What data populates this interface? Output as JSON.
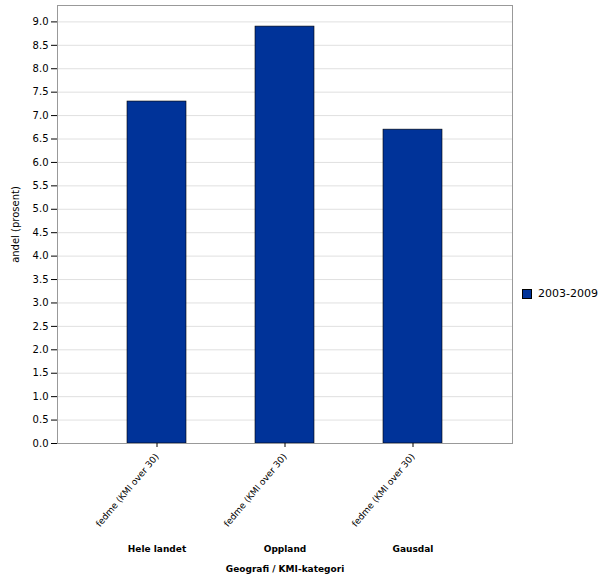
{
  "chart_data": {
    "type": "bar",
    "x_label": "Geografi / KMI-kategori",
    "y_label": "andel (prosent)",
    "categories": [
      "fedme (KMI over 30)",
      "fedme (KMI over 30)",
      "fedme (KMI over 30)"
    ],
    "groups": [
      "Hele landet",
      "Oppland",
      "Gausdal"
    ],
    "series": [
      {
        "name": "2003-2009",
        "color": "#003399",
        "values": [
          7.3,
          8.9,
          6.7
        ]
      }
    ],
    "ylim": [
      0,
      9.35
    ],
    "yticks": [
      {
        "value": 0,
        "label": "0.0"
      },
      0.5,
      {
        "value": 1,
        "label": "1.0"
      },
      1.5,
      {
        "value": 2,
        "label": "2.0"
      },
      2.5,
      {
        "value": 3,
        "label": "3.0"
      },
      3.5,
      {
        "value": 4,
        "label": "4.0"
      },
      4.5,
      {
        "value": 5,
        "label": "5.0"
      },
      5.5,
      {
        "value": 6,
        "label": "6.0"
      },
      6.5,
      {
        "value": 7,
        "label": "7.0"
      },
      7.5,
      {
        "value": 8,
        "label": "8.0"
      },
      8.5,
      {
        "value": 9,
        "label": "9.0"
      }
    ],
    "grid": true,
    "legend": "right"
  }
}
